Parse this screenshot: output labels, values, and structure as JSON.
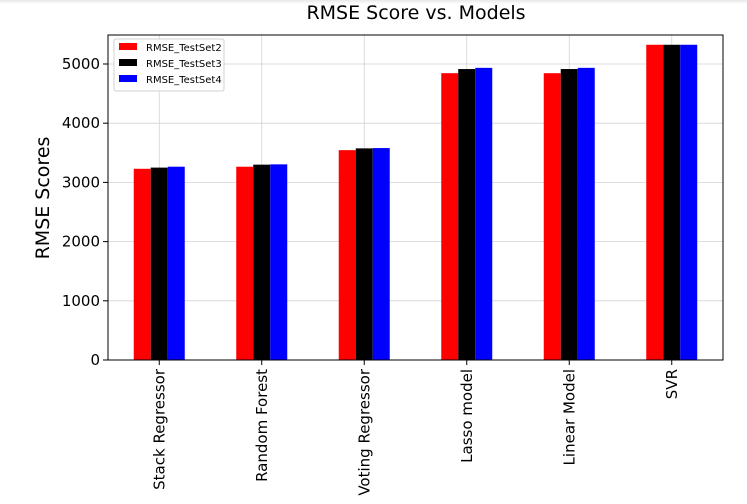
{
  "chart_data": {
    "type": "bar",
    "title": "RMSE Score vs. Models",
    "xlabel": "",
    "ylabel": "RMSE Scores",
    "categories": [
      "Stack Regressor",
      "Random Forest",
      "Voting Regressor",
      "Lasso model",
      "Linear Model",
      "SVR"
    ],
    "series": [
      {
        "name": "RMSE_TestSet2",
        "color": "#ff0000",
        "values": [
          3230,
          3265,
          3545,
          4845,
          4845,
          5325
        ]
      },
      {
        "name": "RMSE_TestSet3",
        "color": "#000000",
        "values": [
          3250,
          3300,
          3575,
          4915,
          4915,
          5325
        ]
      },
      {
        "name": "RMSE_TestSet4",
        "color": "#0000ff",
        "values": [
          3265,
          3305,
          3580,
          4935,
          4935,
          5325
        ]
      }
    ],
    "ylim": [
      0,
      5490
    ],
    "yticks": [
      0,
      1000,
      2000,
      3000,
      4000,
      5000
    ],
    "grid": true,
    "legend_position": "top-left"
  }
}
